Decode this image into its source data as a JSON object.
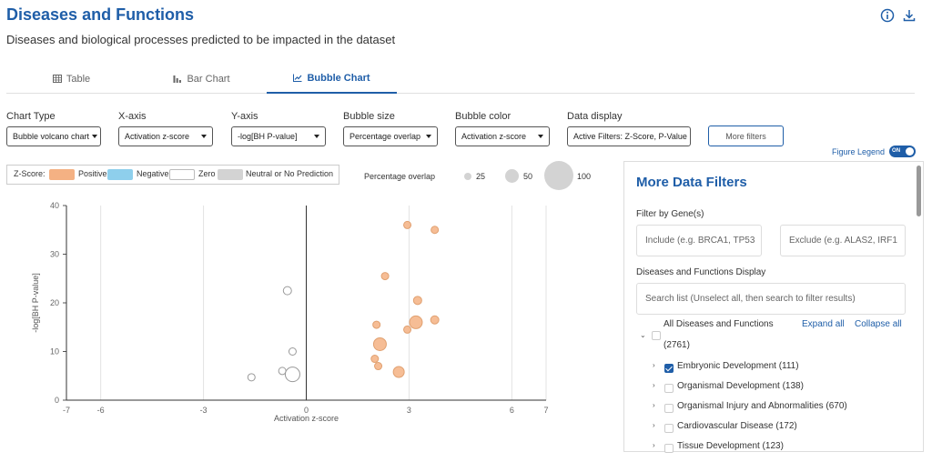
{
  "header": {
    "title": "Diseases and Functions",
    "subtitle": "Diseases and biological processes predicted to be impacted in the dataset"
  },
  "tabs": [
    {
      "label": "Table",
      "icon": "table-icon",
      "active": false
    },
    {
      "label": "Bar Chart",
      "icon": "bar-chart-icon",
      "active": false
    },
    {
      "label": "Bubble Chart",
      "icon": "line-chart-icon",
      "active": true
    }
  ],
  "controls": {
    "chart_type": {
      "label": "Chart Type",
      "value": "Bubble volcano chart"
    },
    "x_axis": {
      "label": "X-axis",
      "value": "Activation z-score"
    },
    "y_axis": {
      "label": "Y-axis",
      "value": "-log[BH P-value]"
    },
    "bubble_size": {
      "label": "Bubble size",
      "value": "Percentage overlap"
    },
    "bubble_color": {
      "label": "Bubble color",
      "value": "Activation z-score"
    },
    "data_display": {
      "label": "Data display",
      "value": "Active Filters: Z-Score, P-Value"
    },
    "more_filters": "More filters",
    "figure_legend": "Figure Legend",
    "toggle": "ON"
  },
  "legend": {
    "zscore_label": "Z-Score:",
    "items": [
      {
        "label": "Positive",
        "color": "#f4b183"
      },
      {
        "label": "Negative",
        "color": "#8ecfec"
      },
      {
        "label": "Zero",
        "color": "#ffffff"
      },
      {
        "label": "Neutral or No Prediction",
        "color": "#d3d3d3"
      }
    ],
    "overlap_label": "Percentage overlap",
    "overlap_sizes": [
      "25",
      "50",
      "100"
    ]
  },
  "chart_data": {
    "type": "scatter",
    "xlabel": "Activation z-score",
    "ylabel": "-log[BH P-value]",
    "xlim": [
      -7,
      7
    ],
    "ylim": [
      0,
      40
    ],
    "x_ticks": [
      -7,
      -6,
      -3,
      0,
      3,
      6,
      7
    ],
    "y_ticks": [
      0,
      10,
      20,
      30,
      40
    ],
    "series": [
      {
        "name": "Positive",
        "color": "#f4b183",
        "points": [
          {
            "x": 2.95,
            "y": 36,
            "size": 4
          },
          {
            "x": 3.75,
            "y": 35,
            "size": 4
          },
          {
            "x": 2.3,
            "y": 25.5,
            "size": 4
          },
          {
            "x": 3.25,
            "y": 20.5,
            "size": 4.5
          },
          {
            "x": 3.75,
            "y": 16.5,
            "size": 4.5
          },
          {
            "x": 3.2,
            "y": 16,
            "size": 7
          },
          {
            "x": 2.05,
            "y": 15.5,
            "size": 4
          },
          {
            "x": 2.95,
            "y": 14.5,
            "size": 4
          },
          {
            "x": 2.15,
            "y": 11.5,
            "size": 7
          },
          {
            "x": 2.0,
            "y": 8.5,
            "size": 4
          },
          {
            "x": 2.1,
            "y": 7,
            "size": 4
          },
          {
            "x": 2.7,
            "y": 5.8,
            "size": 6
          }
        ]
      },
      {
        "name": "Zero",
        "color": "#ffffff",
        "points": [
          {
            "x": -0.55,
            "y": 22.5,
            "size": 4.5
          },
          {
            "x": -0.4,
            "y": 10,
            "size": 4
          },
          {
            "x": -0.7,
            "y": 6,
            "size": 4
          },
          {
            "x": -1.6,
            "y": 4.7,
            "size": 4
          },
          {
            "x": -0.4,
            "y": 5.3,
            "size": 8
          }
        ]
      }
    ]
  },
  "panel": {
    "title": "More Data Filters",
    "filter_gene_label": "Filter by Gene(s)",
    "include_placeholder": "Include (e.g. BRCA1, TP53",
    "exclude_placeholder": "Exclude (e.g. ALAS2, IRF1",
    "display_label": "Diseases and Functions Display",
    "search_placeholder": "Search list (Unselect all, then search to filter results)",
    "root_label": "All Diseases and Functions",
    "root_count": "(2761)",
    "expand_all": "Expand all",
    "collapse_all": "Collapse all",
    "items": [
      {
        "label": "Embryonic Development (111)",
        "checked": true
      },
      {
        "label": "Organismal Development (138)",
        "checked": false
      },
      {
        "label": "Organismal Injury and Abnormalities (670)",
        "checked": false
      },
      {
        "label": "Cardiovascular Disease (172)",
        "checked": false
      },
      {
        "label": "Tissue Development (123)",
        "checked": false
      }
    ]
  }
}
